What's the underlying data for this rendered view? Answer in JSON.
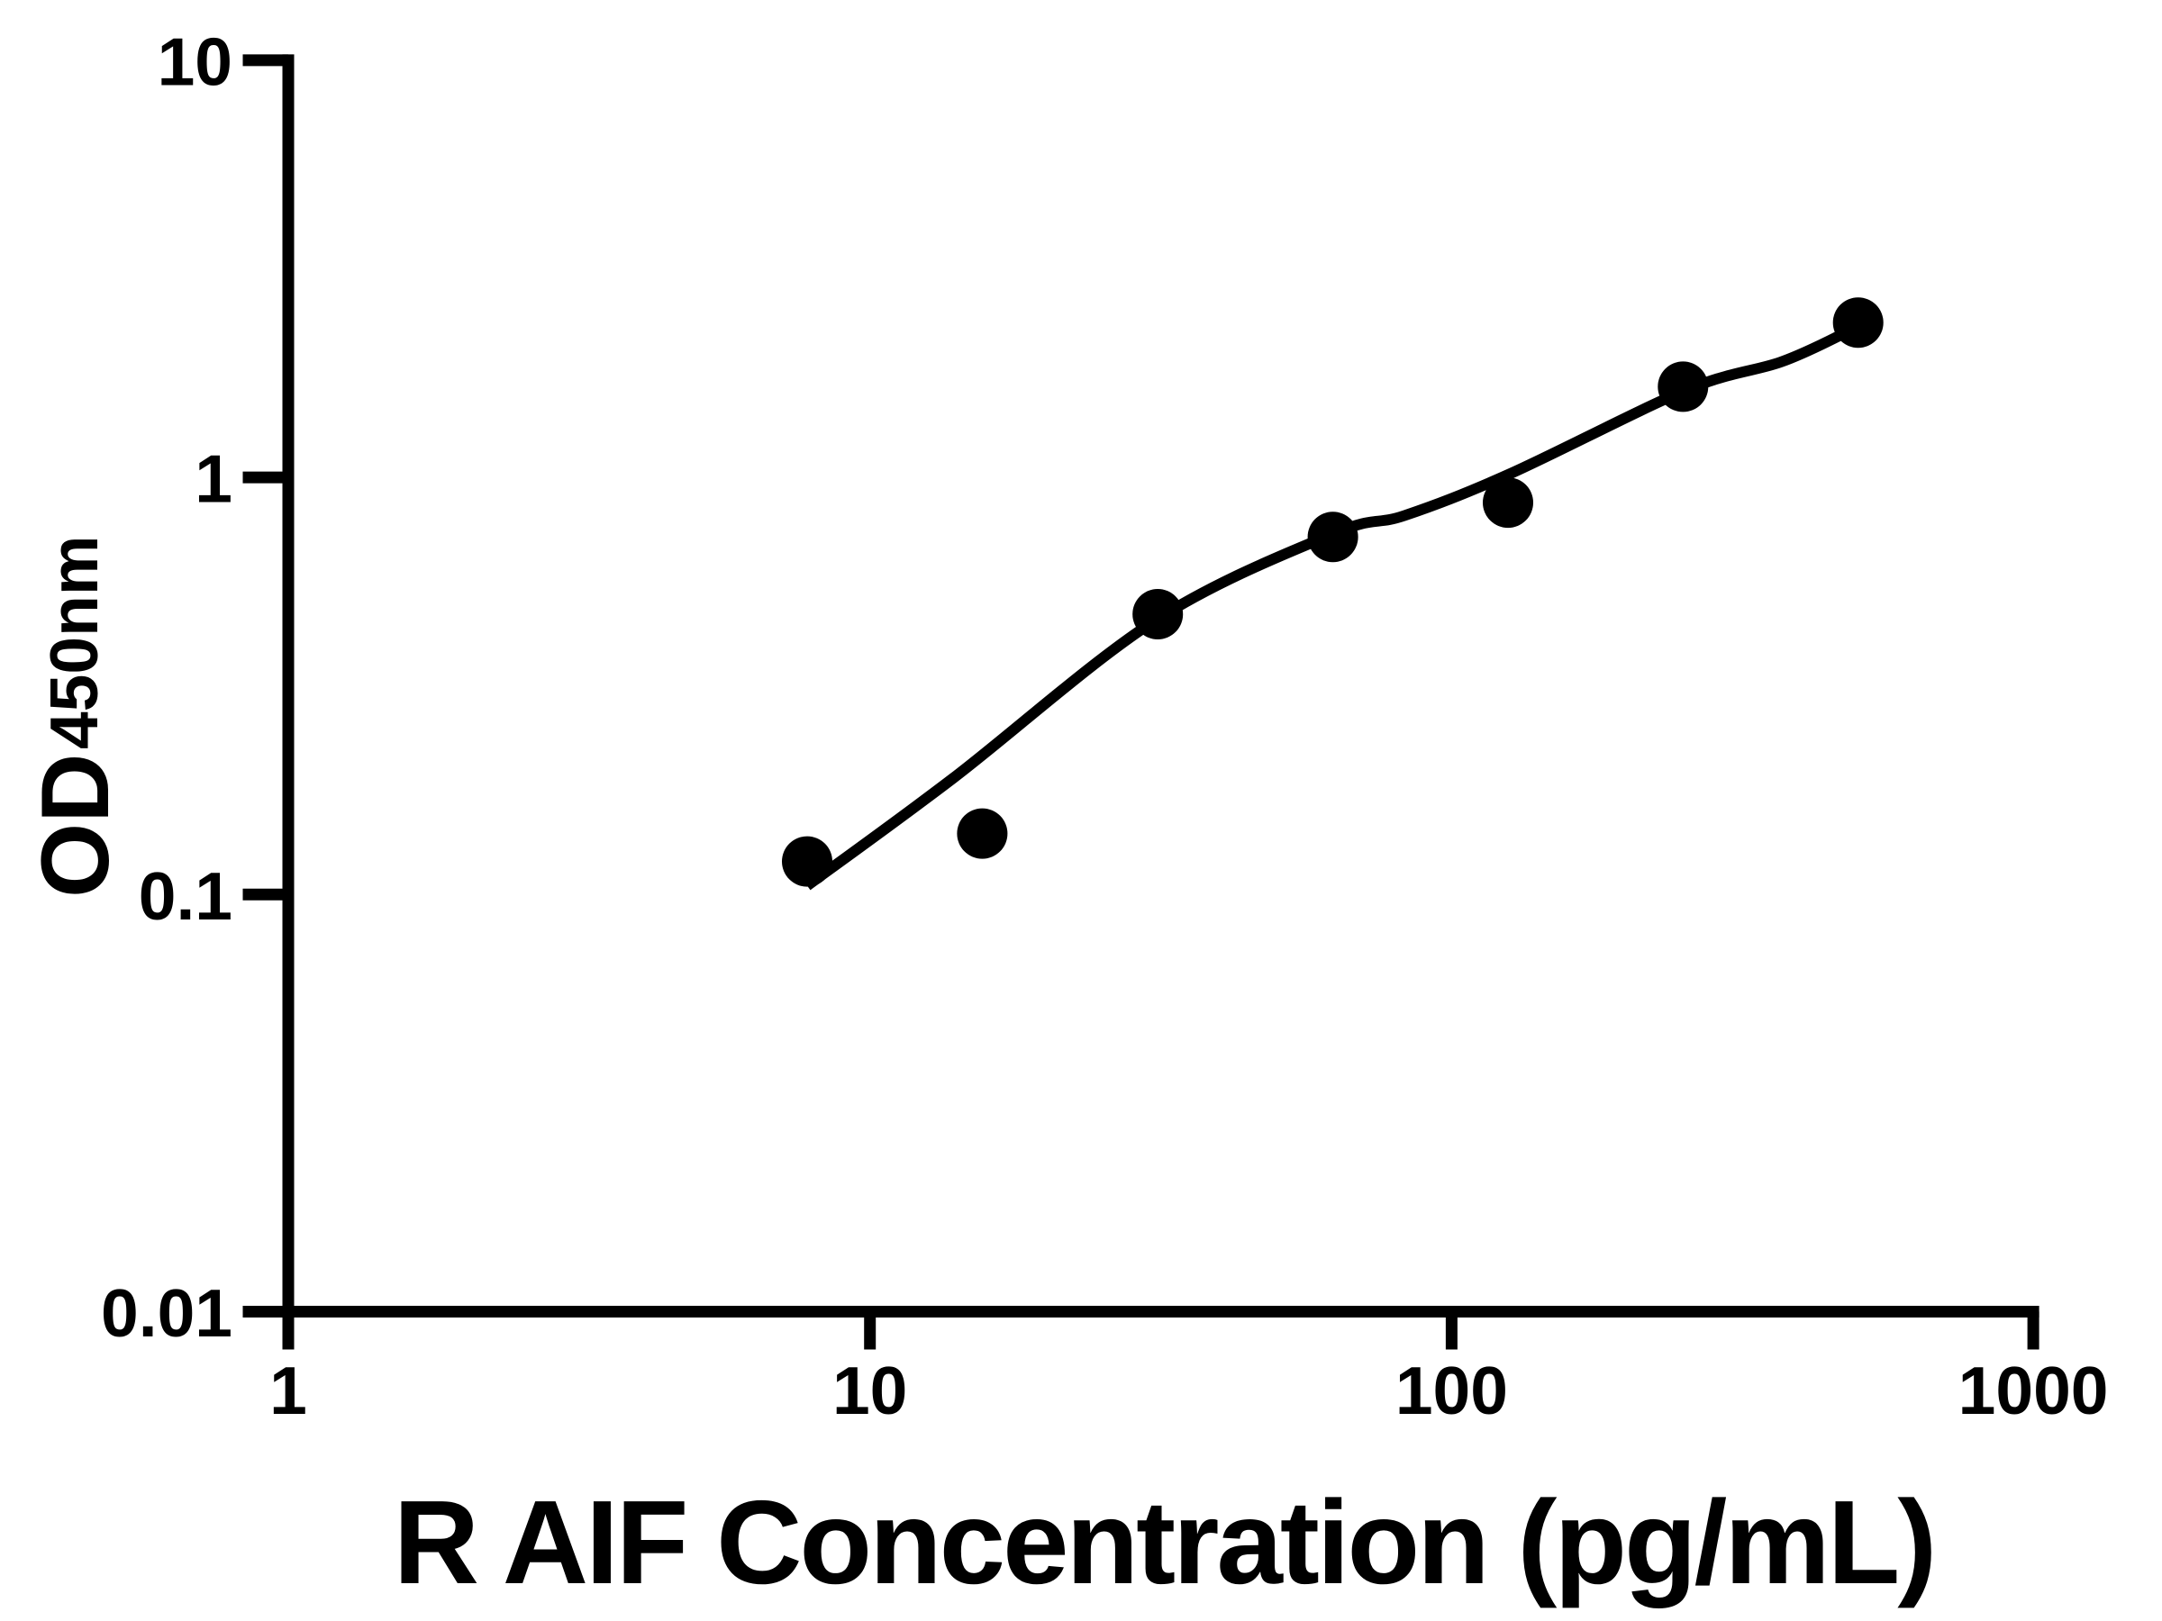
{
  "style": {
    "background": "#ffffff",
    "ink": "#000000"
  },
  "chart_data": {
    "type": "scatter",
    "title": "",
    "xlabel": "R AIF Concentration (pg/mL)",
    "ylabel_main": "OD",
    "ylabel_sub": "450nm",
    "x_scale": "log",
    "y_scale": "log",
    "xlim": [
      1,
      1000
    ],
    "ylim": [
      0.01,
      10
    ],
    "grid": false,
    "legend": false,
    "x_ticks": {
      "values": [
        1,
        10,
        100,
        1000
      ],
      "labels": [
        "1",
        "10",
        "100",
        "1000"
      ]
    },
    "y_ticks": {
      "values": [
        10,
        1,
        0.1,
        0.01
      ],
      "labels": [
        "10",
        "1",
        "0.1",
        "0.01"
      ]
    },
    "series": [
      {
        "name": "standard-points",
        "marker": "circle",
        "color": "#000000",
        "x": [
          7.8,
          15.6,
          31.25,
          62.5,
          125,
          250,
          500
        ],
        "y": [
          0.12,
          0.14,
          0.47,
          0.72,
          0.87,
          1.65,
          2.35
        ]
      }
    ],
    "fit_curve": {
      "name": "fitted-standard-curve",
      "color": "#000000",
      "points": [
        [
          7.8,
          0.105
        ],
        [
          13.9,
          0.19
        ],
        [
          31,
          0.455
        ],
        [
          63,
          0.735
        ],
        [
          83,
          0.81
        ],
        [
          126,
          1.02
        ],
        [
          253,
          1.62
        ],
        [
          368,
          1.89
        ],
        [
          466,
          2.19
        ]
      ]
    }
  }
}
